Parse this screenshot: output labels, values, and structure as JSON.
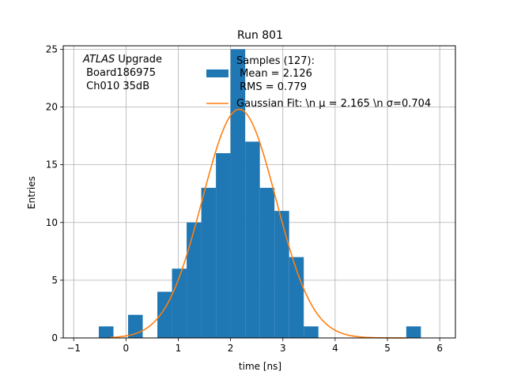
{
  "chart_data": {
    "type": "bar",
    "title": "Run 801",
    "xlabel": "time [ns]",
    "ylabel": "Entries",
    "xlim": [
      -1.2,
      6.3
    ],
    "ylim": [
      0,
      25.3
    ],
    "xticks": [
      -1,
      0,
      1,
      2,
      3,
      4,
      5,
      6
    ],
    "yticks": [
      0,
      5,
      10,
      15,
      20,
      25
    ],
    "grid": true,
    "legend_position": "top-right",
    "histogram": {
      "name": "Samples (127):\n Mean = 2.126\n RMS = 0.779",
      "color": "#1f77b4",
      "bin_width": 0.28,
      "bin_lefts": [
        -0.52,
        0.04,
        0.6,
        0.88,
        1.16,
        1.44,
        1.72,
        2.0,
        2.28,
        2.56,
        2.84,
        3.12,
        3.4,
        5.36
      ],
      "counts": [
        1,
        2,
        4,
        6,
        10,
        13,
        16,
        25,
        17,
        13,
        11,
        7,
        1,
        1
      ]
    },
    "fit": {
      "name": "Gaussian Fit: \\n $\\mu$ = 2.165 \\n $\\sigma$=0.704",
      "color": "#ff7f0e",
      "mu": 2.165,
      "sigma": 0.704,
      "amplitude": 19.8,
      "x_range": [
        -0.3,
        5.4
      ]
    },
    "annotation": {
      "line1_italic": "ATLAS",
      "line1_rest": " Upgrade",
      "line2": " Board186975",
      "line3": " Ch010 35dB"
    }
  },
  "labels": {
    "legend_hist_lines": [
      "Samples (127):",
      " Mean = 2.126",
      " RMS = 0.779"
    ],
    "legend_fit_text": "Gaussian Fit: \\n μ = 2.165 \\n σ=0.704"
  }
}
